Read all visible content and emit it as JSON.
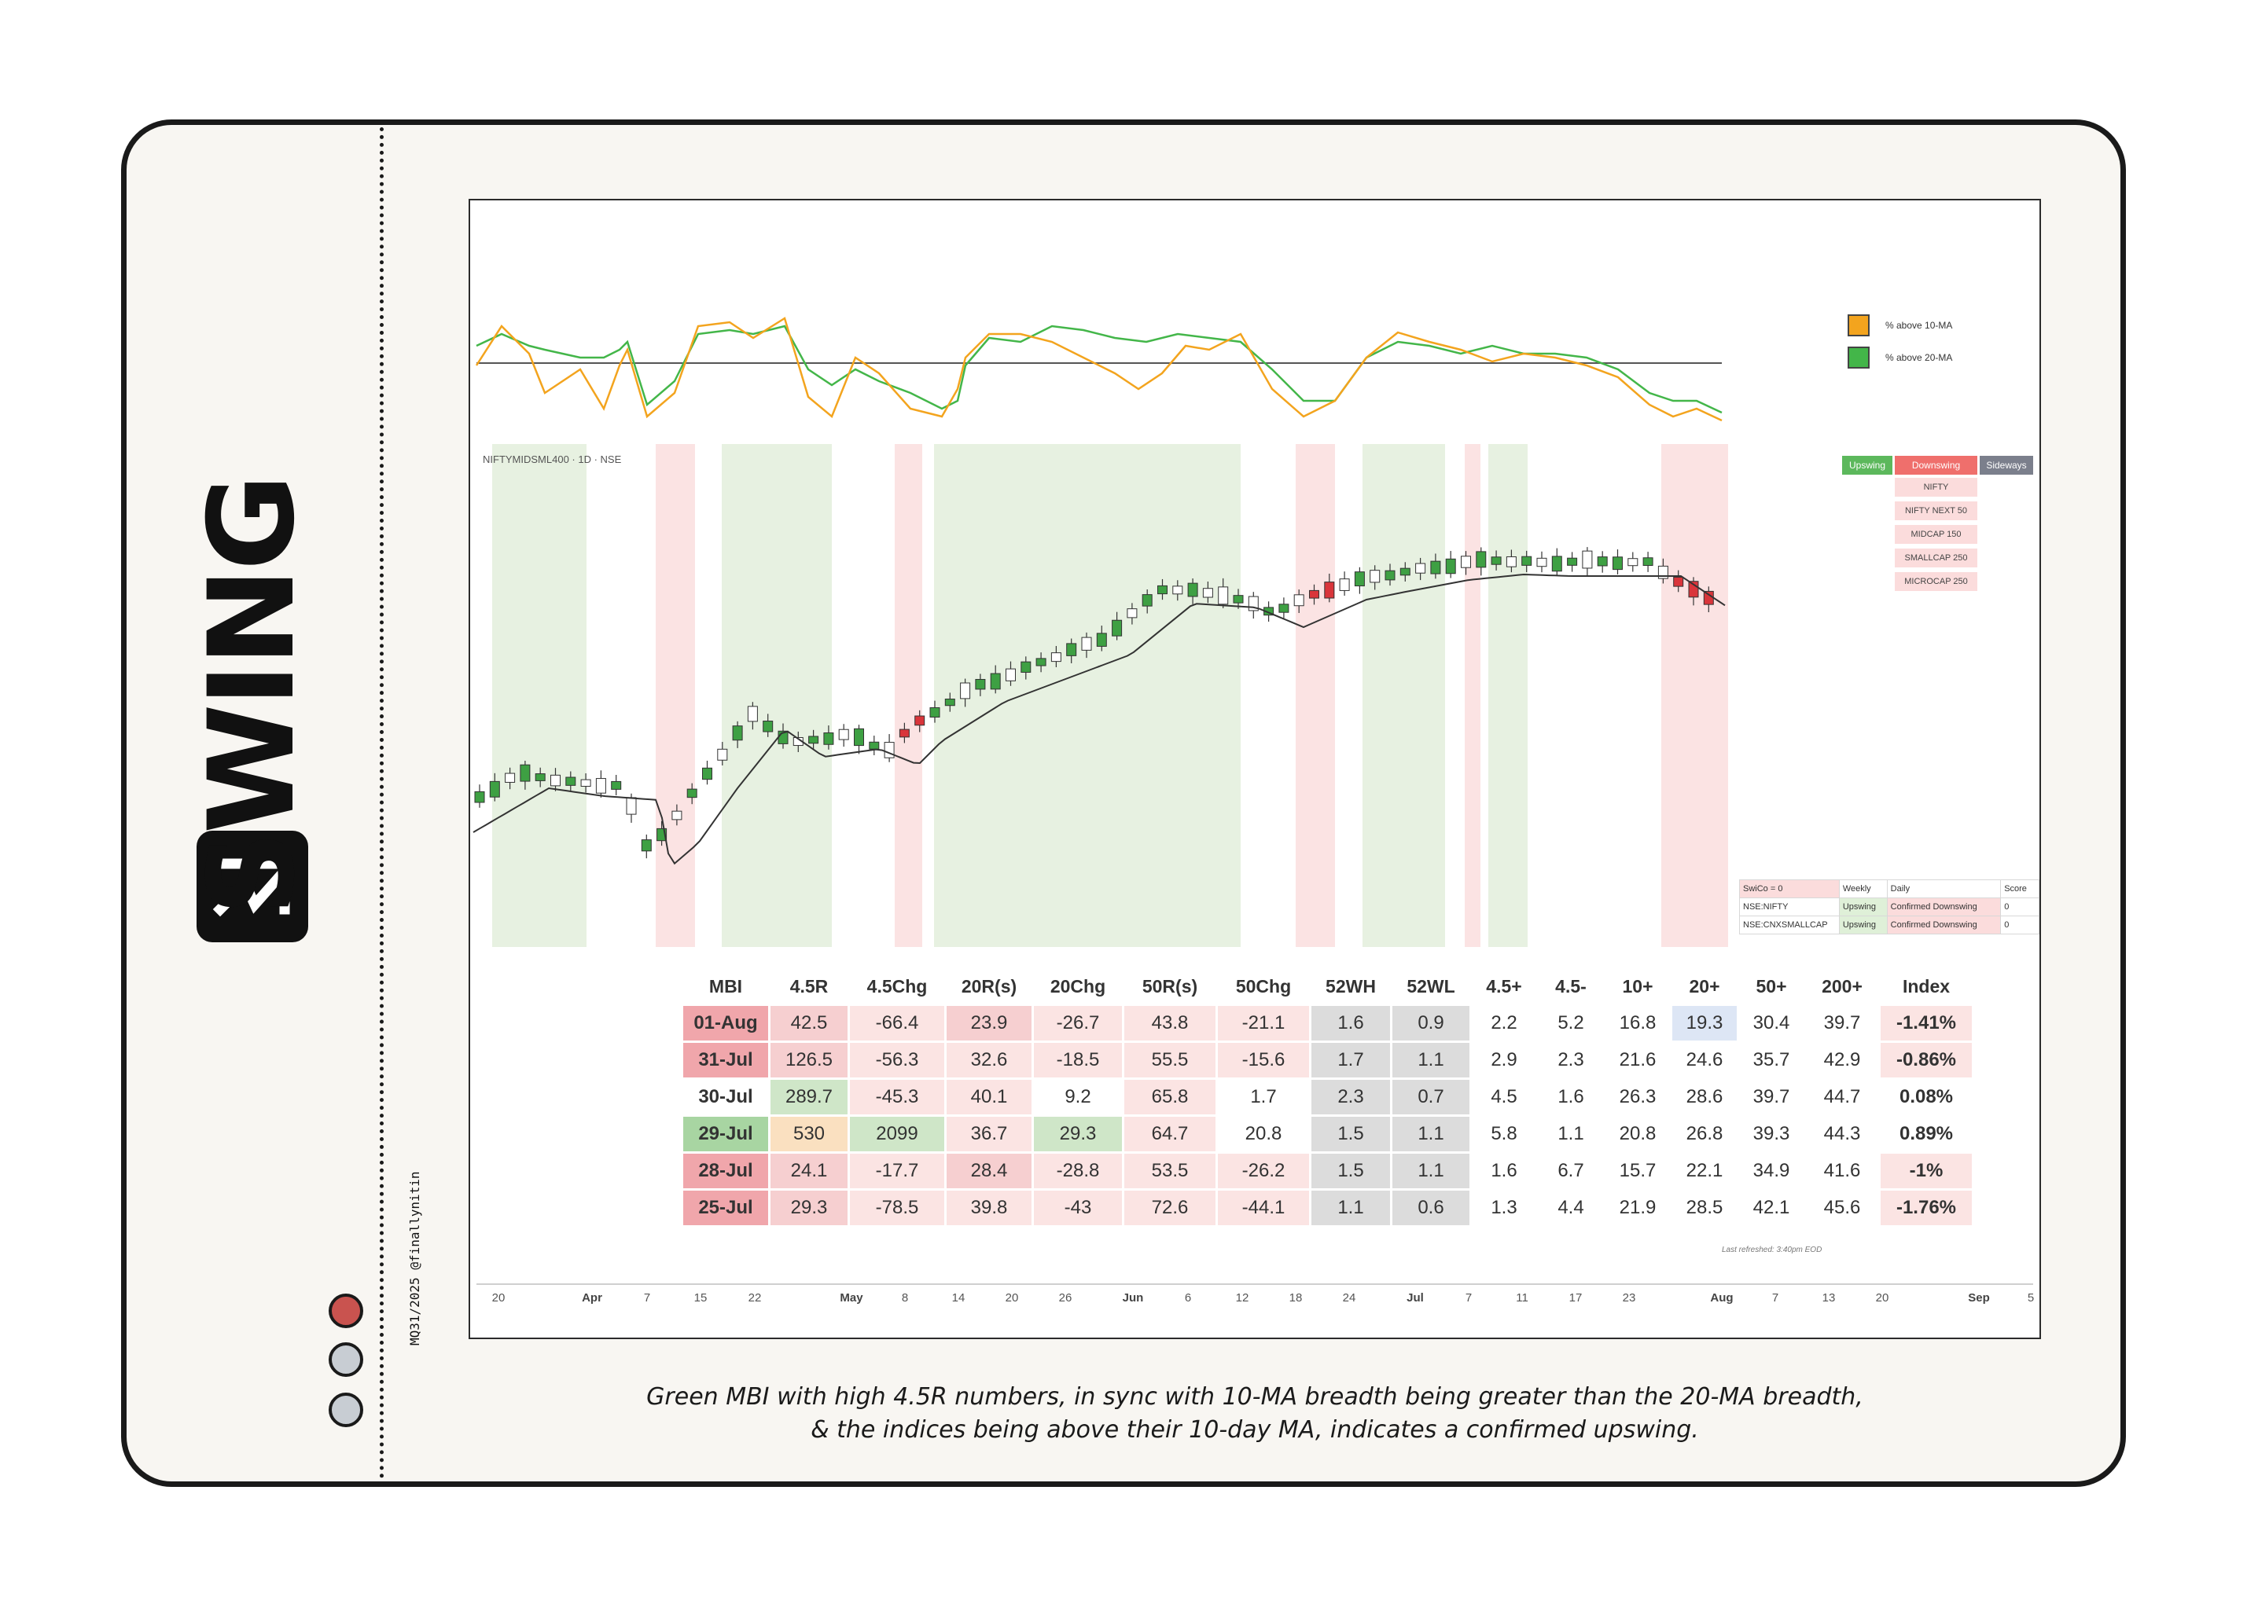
{
  "sidebar": {
    "brand_word": "SWING",
    "credit": "MQ31/2025 @finallynitin",
    "dots": [
      "#c9534f",
      "#c8cdd3",
      "#c8cdd3"
    ]
  },
  "breadth_chart": {
    "legend": [
      {
        "label": "% above 10-MA",
        "color": "#f3a41e"
      },
      {
        "label": "% above 20-MA",
        "color": "#43b649"
      }
    ]
  },
  "price_chart": {
    "symbol_label": "NIFTYMIDSML400 · 1D · NSE",
    "legend_tags": {
      "upswing": "Upswing",
      "downswing": "Downswing",
      "sideways": "Sideways"
    },
    "index_list": [
      "NIFTY",
      "NIFTY NEXT 50",
      "MIDCAP 150",
      "SMALLCAP 250",
      "MICROCAP 250"
    ],
    "swico_table": {
      "header": [
        "SwiCo = 0",
        "Weekly",
        "Daily",
        "Score"
      ],
      "rows": [
        [
          "NSE:NIFTY",
          "Upswing",
          "Confirmed Downswing",
          "0"
        ],
        [
          "NSE:CNXSMALLCAP",
          "Upswing",
          "Confirmed Downswing",
          "0"
        ]
      ]
    }
  },
  "mbi_table": {
    "headers": [
      "MBI",
      "4.5R",
      "4.5Chg",
      "20R(s)",
      "20Chg",
      "50R(s)",
      "50Chg",
      "52WH",
      "52WL",
      "4.5+",
      "4.5-",
      "10+",
      "20+",
      "50+",
      "200+",
      "Index"
    ],
    "rows": [
      [
        "01-Aug",
        "42.5",
        "-66.4",
        "23.9",
        "-26.7",
        "43.8",
        "-21.1",
        "1.6",
        "0.9",
        "2.2",
        "5.2",
        "16.8",
        "19.3",
        "30.4",
        "39.7",
        "-1.41%"
      ],
      [
        "31-Jul",
        "126.5",
        "-56.3",
        "32.6",
        "-18.5",
        "55.5",
        "-15.6",
        "1.7",
        "1.1",
        "2.9",
        "2.3",
        "21.6",
        "24.6",
        "35.7",
        "42.9",
        "-0.86%"
      ],
      [
        "30-Jul",
        "289.7",
        "-45.3",
        "40.1",
        "9.2",
        "65.8",
        "1.7",
        "2.3",
        "0.7",
        "4.5",
        "1.6",
        "26.3",
        "28.6",
        "39.7",
        "44.7",
        "0.08%"
      ],
      [
        "29-Jul",
        "530",
        "2099",
        "36.7",
        "29.3",
        "64.7",
        "20.8",
        "1.5",
        "1.1",
        "5.8",
        "1.1",
        "20.8",
        "26.8",
        "39.3",
        "44.3",
        "0.89%"
      ],
      [
        "28-Jul",
        "24.1",
        "-17.7",
        "28.4",
        "-28.8",
        "53.5",
        "-26.2",
        "1.5",
        "1.1",
        "1.6",
        "6.7",
        "15.7",
        "22.1",
        "34.9",
        "41.6",
        "-1%"
      ],
      [
        "25-Jul",
        "29.3",
        "-78.5",
        "39.8",
        "-43",
        "72.6",
        "-44.1",
        "1.1",
        "0.6",
        "1.3",
        "4.4",
        "21.9",
        "28.5",
        "42.1",
        "45.6",
        "-1.76%"
      ]
    ],
    "footnote": "Last refreshed: 3:40pm EOD"
  },
  "x_axis": [
    "20",
    "Apr",
    "7",
    "15",
    "22",
    "May",
    "8",
    "14",
    "20",
    "26",
    "Jun",
    "6",
    "12",
    "18",
    "24",
    "Jul",
    "7",
    "11",
    "17",
    "23",
    "Aug",
    "7",
    "13",
    "20",
    "Sep",
    "5"
  ],
  "caption": {
    "line1": "Green MBI with high 4.5R numbers, in sync with 10-MA breadth being greater than the 20-MA breadth,",
    "line2": "& the indices being above their 10-day MA, indicates a confirmed upswing."
  }
}
